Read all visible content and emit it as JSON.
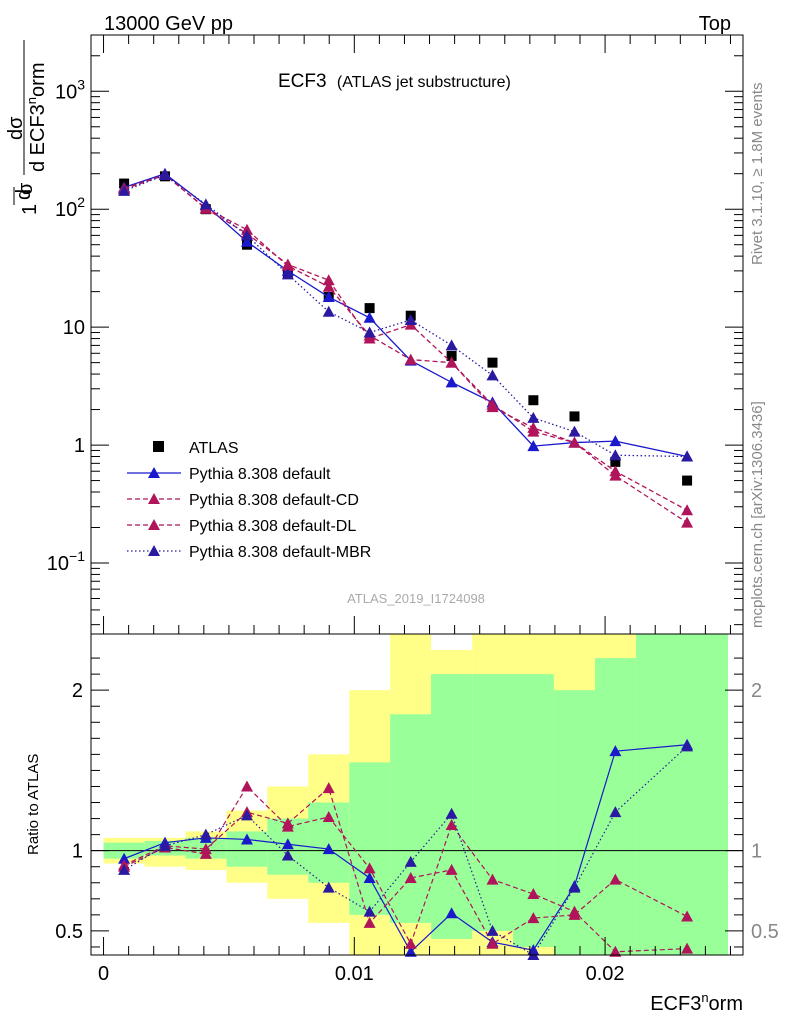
{
  "header": {
    "left": "13000 GeV pp",
    "right": "Top"
  },
  "side": {
    "rivet": "Rivet 3.1.10, ≥ 1.8M events",
    "mcplots": "mcplots.cern.ch [arXiv:1306.3436]"
  },
  "plot": {
    "title": "ECF3",
    "subtitle": "(ATLAS jet substructure)",
    "analysis_id": "ATLAS_2019_I1724098"
  },
  "colors": {
    "atlas": "#000000",
    "default": "#1a1acc",
    "cd": "#b0145a",
    "dl": "#b0145a",
    "mbr": "#2a1aa0",
    "green_band": "#99ff99",
    "yellow_band": "#ffff88"
  },
  "chart_data": [
    {
      "type": "scatter",
      "name": "main",
      "ylabel": "1/σ dσ/d ECF3norm",
      "yscale": "log",
      "ylim": [
        0.025,
        3000
      ],
      "xlim": [
        -0.0005,
        0.0255
      ],
      "x_ticks": [
        0,
        0.01,
        0.02
      ],
      "y_tick_labels": [
        {
          "value": 1000,
          "label": "10^3"
        },
        {
          "value": 100,
          "label": "10^2"
        },
        {
          "value": 10,
          "label": "10"
        },
        {
          "value": 1,
          "label": "1"
        },
        {
          "value": 0.1,
          "label": "10^-1"
        }
      ],
      "legend_position": "lower-left",
      "x": [
        0.00082,
        0.00245,
        0.00408,
        0.00572,
        0.00735,
        0.00898,
        0.01061,
        0.01225,
        0.01388,
        0.01551,
        0.01714,
        0.01878,
        0.02041,
        0.02327
      ],
      "series": [
        {
          "name": "ATLAS",
          "style": "marker",
          "values": [
            165,
            190,
            100,
            50,
            29,
            18,
            14.5,
            12.5,
            5.7,
            5.0,
            2.4,
            1.75,
            0.72,
            0.5
          ]
        },
        {
          "name": "Pythia 8.308 default",
          "style": "solid",
          "values": [
            153,
            200,
            108,
            53,
            30,
            18,
            12,
            5.2,
            3.4,
            2.3,
            0.98,
            1.05,
            1.08,
            0.8
          ]
        },
        {
          "name": "Pythia 8.308 default-CD",
          "style": "dashed",
          "values": [
            150,
            196,
            101,
            62,
            34,
            25,
            8.0,
            10.5,
            5.0,
            2.1,
            1.4,
            1.05,
            0.6,
            0.28
          ]
        },
        {
          "name": "Pythia 8.308 default-DL",
          "style": "dashed",
          "values": [
            148,
            195,
            102,
            67,
            33,
            22,
            8.5,
            5.3,
            5.0,
            2.2,
            1.3,
            1.05,
            0.55,
            0.22
          ]
        },
        {
          "name": "Pythia 8.308 default-MBR",
          "style": "dotted",
          "values": [
            143,
            195,
            110,
            60,
            28,
            13.5,
            9.0,
            11.5,
            7.0,
            3.9,
            1.7,
            1.3,
            0.82,
            0.8
          ]
        }
      ]
    },
    {
      "type": "scatter",
      "name": "ratio",
      "ylabel": "Ratio to ATLAS",
      "xlabel": "ECF3norm",
      "ylim": [
        0.35,
        2.35
      ],
      "xlim": [
        -0.0005,
        0.0255
      ],
      "y_ticks": [
        0.5,
        1,
        2
      ],
      "x_ticks": [
        0,
        0.01,
        0.02
      ],
      "x_tick_labels": [
        "0",
        "0.01",
        "0.02"
      ],
      "bands": {
        "edges": [
          0,
          0.00163,
          0.00327,
          0.0049,
          0.00653,
          0.00816,
          0.0098,
          0.01143,
          0.01306,
          0.0147,
          0.01633,
          0.01796,
          0.0196,
          0.02123,
          0.0249
        ],
        "green_low": [
          0.95,
          0.97,
          0.95,
          0.9,
          0.85,
          0.8,
          0.6,
          0.55,
          0.45,
          0.5,
          0.4,
          0.35,
          0.35,
          0.35
        ],
        "green_high": [
          1.05,
          1.06,
          1.08,
          1.12,
          1.2,
          1.3,
          1.55,
          1.85,
          2.1,
          2.1,
          2.1,
          2.0,
          2.2,
          2.35
        ],
        "yellow_low": [
          0.92,
          0.9,
          0.88,
          0.8,
          0.7,
          0.55,
          0.35,
          0.35,
          0.35,
          0.35,
          0.35,
          0.35,
          0.35,
          0.35
        ],
        "yellow_high": [
          1.08,
          1.08,
          1.12,
          1.25,
          1.4,
          1.6,
          2.0,
          2.35,
          2.25,
          2.35,
          2.35,
          2.35,
          2.35,
          2.35
        ]
      },
      "series": [
        {
          "name": "Pythia 8.308 default",
          "values": [
            0.95,
            1.05,
            1.08,
            1.07,
            1.04,
            1.01,
            0.83,
            0.37,
            0.61,
            0.43,
            0.38,
            0.78,
            1.62,
            1.66
          ]
        },
        {
          "name": "Pythia 8.308 default-CD",
          "values": [
            0.91,
            1.03,
            1.01,
            1.24,
            1.17,
            1.39,
            0.55,
            0.83,
            0.88,
            0.42,
            0.58,
            0.6,
            0.82,
            0.59
          ]
        },
        {
          "name": "Pythia 8.308 default-DL",
          "values": [
            0.9,
            1.02,
            0.98,
            1.4,
            1.15,
            1.21,
            0.89,
            0.42,
            1.16,
            0.82,
            0.73,
            0.62,
            0.37,
            0.39
          ]
        },
        {
          "name": "Pythia 8.308 default-MBR",
          "values": [
            0.88,
            1.03,
            1.1,
            1.22,
            0.97,
            0.77,
            0.62,
            0.93,
            1.23,
            0.5,
            0.35,
            0.77,
            1.24,
            1.65
          ]
        }
      ]
    }
  ]
}
